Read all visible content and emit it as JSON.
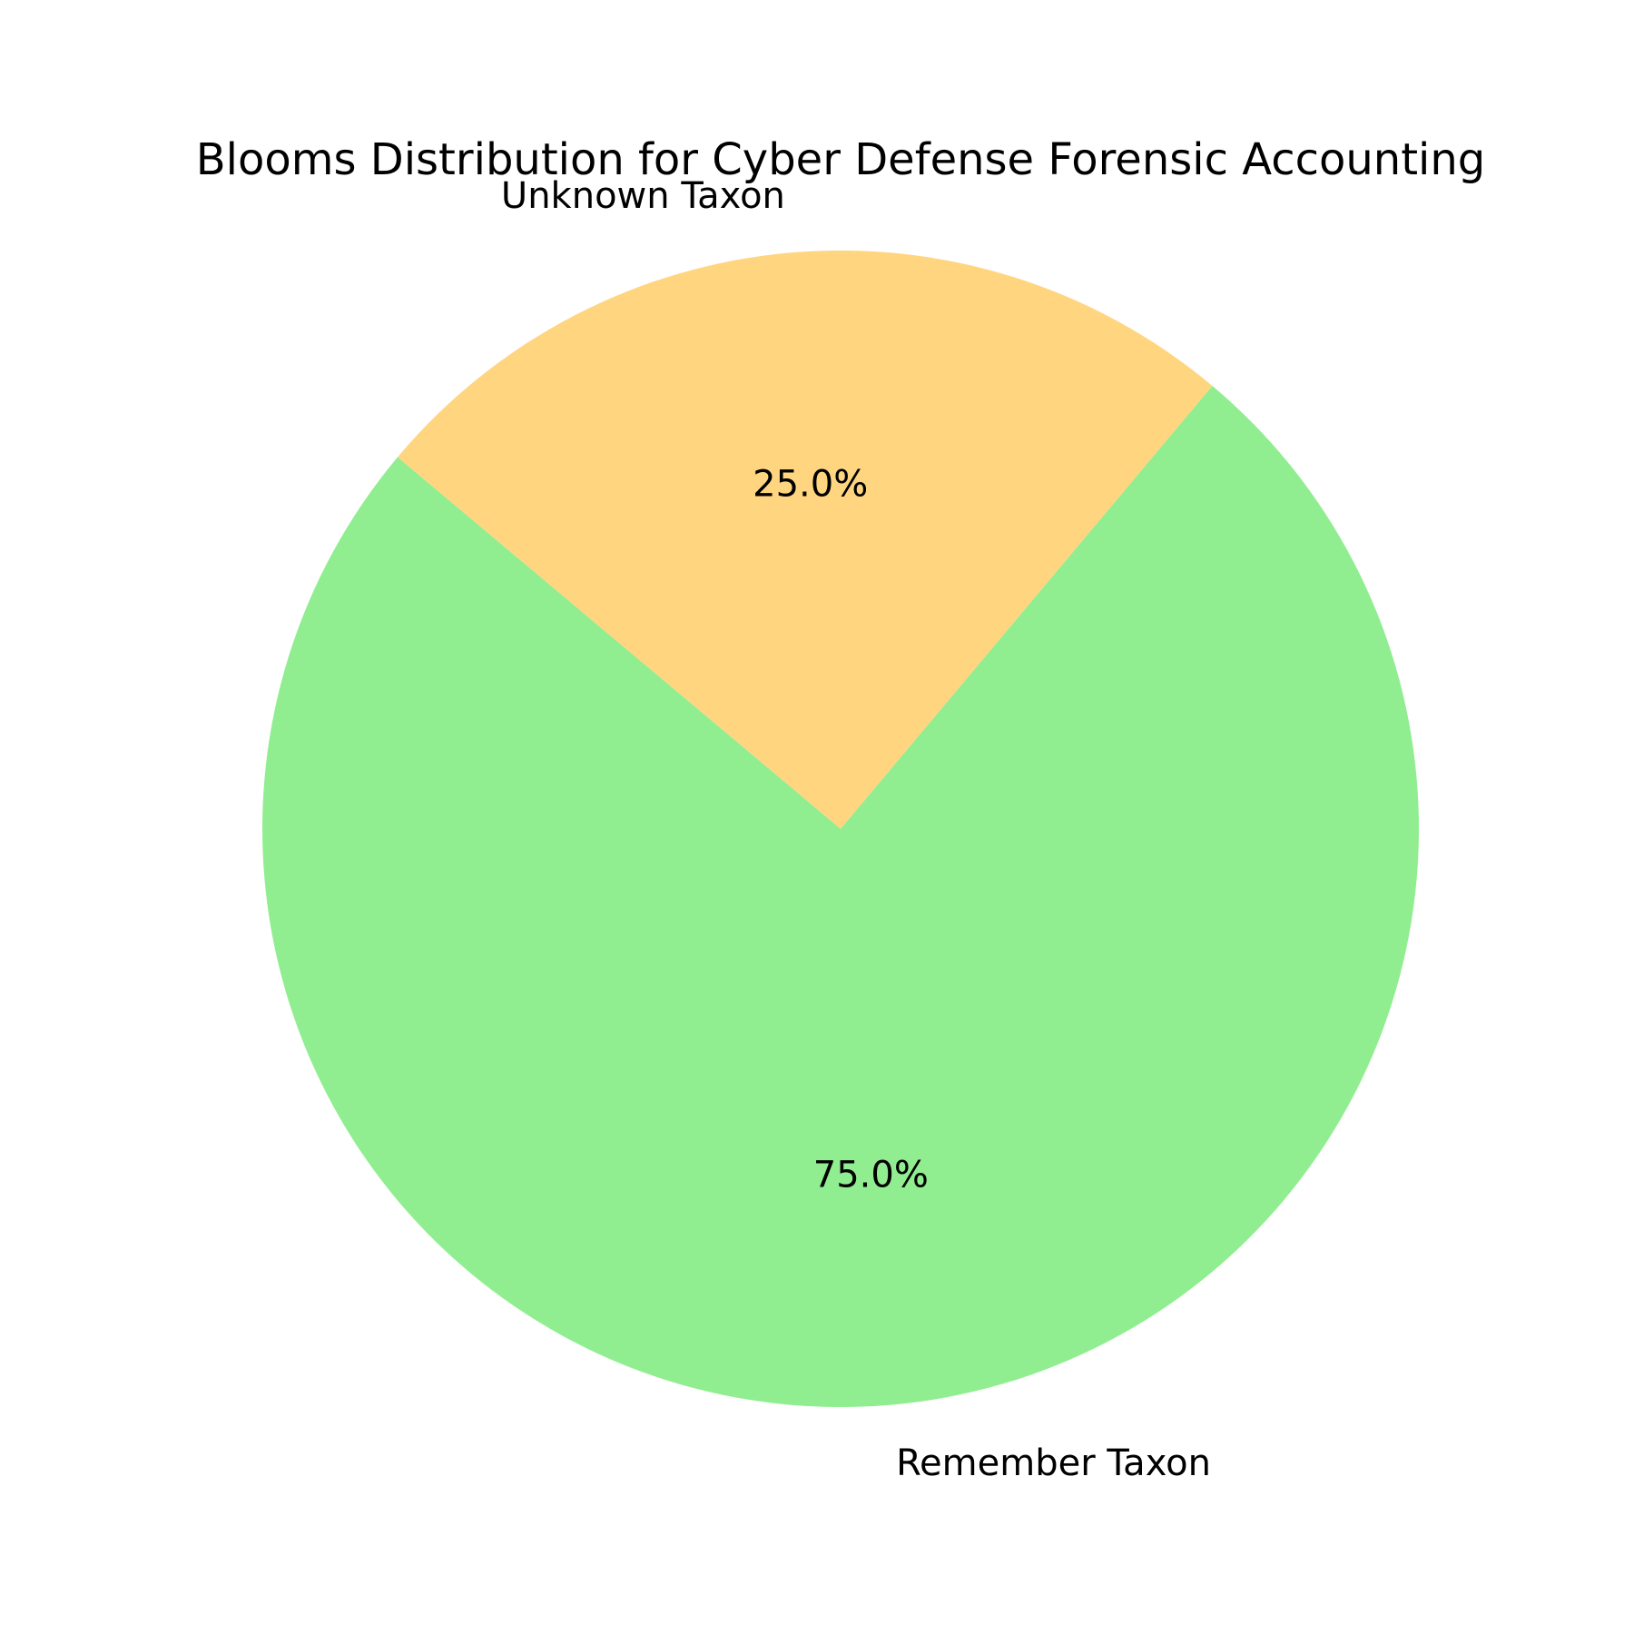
{
  "chart_data": {
    "type": "pie",
    "title": "Blooms Distribution for Cyber Defense Forensic Accounting",
    "slices": [
      {
        "label": "Remember Taxon",
        "value": 75.0,
        "pct_label": "75.0%",
        "color": "#90ee90"
      },
      {
        "label": "Unknown Taxon",
        "value": 25.0,
        "pct_label": "25.0%",
        "color": "#ffd580"
      }
    ],
    "start_angle_deg": 140,
    "direction": "counterclockwise"
  }
}
